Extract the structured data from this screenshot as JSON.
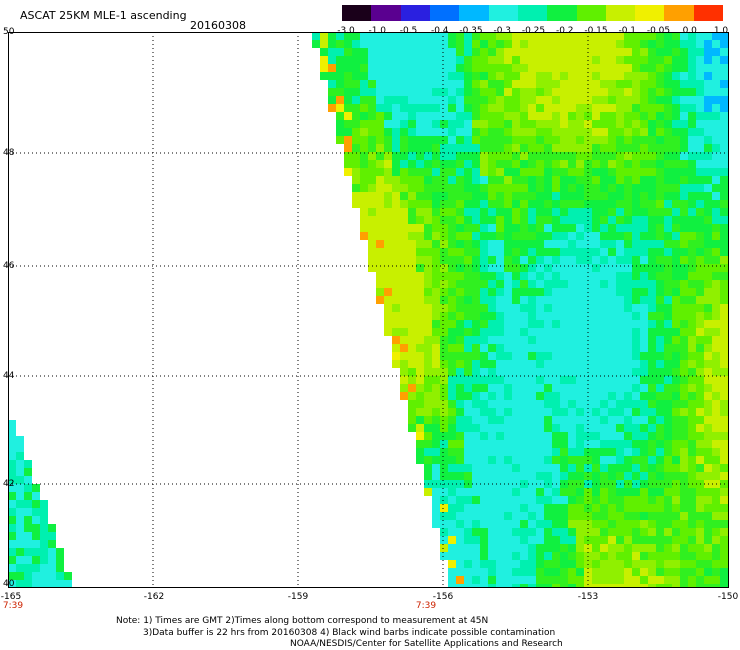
{
  "header": {
    "title": "ASCAT 25KM MLE-1 ascending",
    "date": "20160308"
  },
  "colorbar": {
    "labels": [
      "-3.0",
      "-1.0",
      "-0.5",
      "-0.4",
      "-0.35",
      "-0.3",
      "-0.25",
      "-0.2",
      "-0.15",
      "-0.1",
      "-0.05",
      "0.0",
      "1.0"
    ],
    "colors": [
      "#1a001a",
      "#5a0090",
      "#2a20e0",
      "#0070ff",
      "#00b8ff",
      "#20f0e0",
      "#00f0b0",
      "#10f040",
      "#60f000",
      "#c8f000",
      "#f0f000",
      "#ffa000",
      "#ff3000"
    ]
  },
  "map": {
    "lat_labels": [
      "50",
      "48",
      "46",
      "44",
      "42",
      "40"
    ],
    "lon_labels": [
      "-165",
      "-162",
      "-159",
      "-156",
      "-153",
      "-150"
    ],
    "time_labels": [
      "7:39",
      "7:39"
    ]
  },
  "notes": {
    "line1": "Note: 1) Times are GMT 2)Times along bottom correspond to measurement at 45N",
    "line2": "3)Data buffer is 22 hrs from 20160308 4) Black wind barbs indicate possible contamination",
    "line3": "NOAA/NESDIS/Center for Satellite Applications and Research"
  }
}
